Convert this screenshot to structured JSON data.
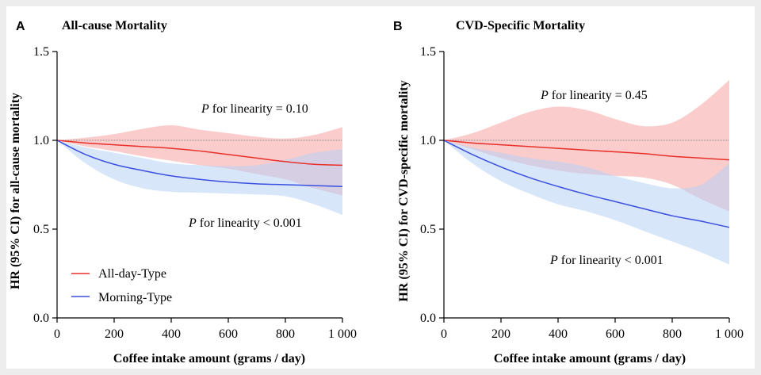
{
  "chart_data": [
    {
      "panel": "A",
      "type": "line",
      "title": "All-cause Mortality",
      "xlabel": "Coffee intake amount (grams / day)",
      "ylabel": "HR (95% CI) for all-cause mortality",
      "xlim": [
        0,
        1000
      ],
      "ylim": [
        0.0,
        1.5
      ],
      "xticks": [
        0,
        200,
        400,
        600,
        800,
        1000
      ],
      "xtick_labels": [
        "0",
        "200",
        "400",
        "600",
        "800",
        "1 000"
      ],
      "yticks": [
        0.0,
        0.5,
        1.0,
        1.5
      ],
      "ytick_labels": [
        "0.0",
        "0.5",
        "1.0",
        "1.5"
      ],
      "reference_line": 1.0,
      "x": [
        0,
        100,
        200,
        300,
        400,
        500,
        600,
        700,
        800,
        900,
        1000
      ],
      "series": [
        {
          "name": "All-day-Type",
          "color": "#e8302a",
          "band_color": "#f6a3a3",
          "values": [
            1.0,
            0.985,
            0.975,
            0.965,
            0.955,
            0.94,
            0.92,
            0.9,
            0.88,
            0.865,
            0.86
          ],
          "lower": [
            1.0,
            0.965,
            0.94,
            0.91,
            0.885,
            0.86,
            0.84,
            0.81,
            0.78,
            0.73,
            0.69
          ],
          "upper": [
            1.0,
            1.015,
            1.035,
            1.065,
            1.085,
            1.06,
            1.04,
            1.02,
            1.01,
            1.03,
            1.075
          ]
        },
        {
          "name": "Morning-Type",
          "color": "#3a4fe0",
          "band_color": "#b8d2f5",
          "values": [
            1.0,
            0.92,
            0.865,
            0.83,
            0.8,
            0.78,
            0.765,
            0.755,
            0.75,
            0.745,
            0.74
          ],
          "lower": [
            1.0,
            0.87,
            0.78,
            0.73,
            0.71,
            0.705,
            0.7,
            0.695,
            0.685,
            0.64,
            0.58
          ],
          "upper": [
            1.0,
            0.96,
            0.93,
            0.9,
            0.87,
            0.86,
            0.855,
            0.86,
            0.89,
            0.93,
            0.95
          ]
        }
      ],
      "annotations": [
        {
          "italic": "P",
          "text": " for linearity = 0.10",
          "series": "All-day-Type"
        },
        {
          "italic": "P",
          "text": " for linearity < 0.001",
          "series": "Morning-Type"
        }
      ],
      "legend": {
        "placement": "bottom-left",
        "entries": [
          "All-day-Type",
          "Morning-Type"
        ]
      }
    },
    {
      "panel": "B",
      "type": "line",
      "title": "CVD-Specific Mortality",
      "xlabel": "Coffee intake amount (grams / day)",
      "ylabel": "HR (95% CI) for CVD-specific mortality",
      "xlim": [
        0,
        1000
      ],
      "ylim": [
        0.0,
        1.5
      ],
      "xticks": [
        0,
        200,
        400,
        600,
        800,
        1000
      ],
      "xtick_labels": [
        "0",
        "200",
        "400",
        "600",
        "800",
        "1 000"
      ],
      "yticks": [
        0.0,
        0.5,
        1.0,
        1.5
      ],
      "ytick_labels": [
        "0.0",
        "0.5",
        "1.0",
        "1.5"
      ],
      "reference_line": 1.0,
      "x": [
        0,
        100,
        200,
        300,
        400,
        500,
        600,
        700,
        800,
        900,
        1000
      ],
      "series": [
        {
          "name": "All-day-Type",
          "color": "#e8302a",
          "band_color": "#f6a3a3",
          "values": [
            1.0,
            0.985,
            0.975,
            0.965,
            0.955,
            0.945,
            0.935,
            0.925,
            0.91,
            0.9,
            0.89
          ],
          "lower": [
            1.0,
            0.95,
            0.9,
            0.86,
            0.83,
            0.81,
            0.8,
            0.79,
            0.75,
            0.67,
            0.6
          ],
          "upper": [
            1.0,
            1.04,
            1.1,
            1.16,
            1.19,
            1.17,
            1.12,
            1.08,
            1.1,
            1.2,
            1.34
          ]
        },
        {
          "name": "Morning-Type",
          "color": "#3a4fe0",
          "band_color": "#b8d2f5",
          "values": [
            1.0,
            0.92,
            0.85,
            0.79,
            0.74,
            0.695,
            0.655,
            0.615,
            0.575,
            0.545,
            0.51
          ],
          "lower": [
            1.0,
            0.87,
            0.77,
            0.7,
            0.64,
            0.6,
            0.55,
            0.49,
            0.43,
            0.37,
            0.3
          ],
          "upper": [
            1.0,
            0.96,
            0.93,
            0.9,
            0.88,
            0.85,
            0.8,
            0.76,
            0.73,
            0.75,
            0.87
          ]
        }
      ],
      "annotations": [
        {
          "italic": "P",
          "text": " for linearity = 0.45",
          "series": "All-day-Type"
        },
        {
          "italic": "P",
          "text": " for linearity < 0.001",
          "series": "Morning-Type"
        }
      ]
    }
  ]
}
